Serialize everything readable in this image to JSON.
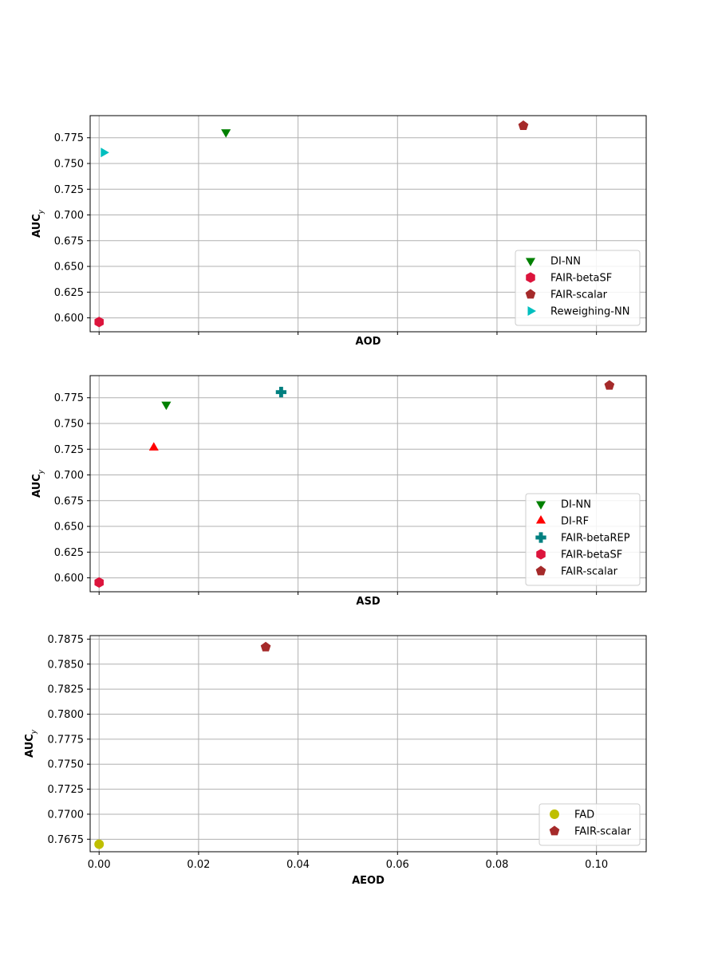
{
  "chart_data": [
    {
      "type": "scatter",
      "xlabel": "AOD",
      "ylabel": "AUC",
      "ylabel_subscript": "y",
      "xlim": [
        -0.0018,
        0.11
      ],
      "ylim": [
        0.5865,
        0.7965
      ],
      "x_ticks": [
        0.0,
        0.02,
        0.04,
        0.06,
        0.08,
        0.1
      ],
      "x_tick_labels_visible": false,
      "y_ticks": [
        0.6,
        0.625,
        0.65,
        0.675,
        0.7,
        0.725,
        0.75,
        0.775
      ],
      "y_tick_labels": [
        "0.600",
        "0.625",
        "0.650",
        "0.675",
        "0.700",
        "0.725",
        "0.750",
        "0.775"
      ],
      "grid": true,
      "legend_position": "lower-right",
      "series": [
        {
          "name": "DI-NN",
          "marker": "triangle-down",
          "color": "#008000",
          "points": [
            {
              "x": 0.0255,
              "y": 0.7805
            }
          ]
        },
        {
          "name": "FAIR-betaSF",
          "marker": "hexagon",
          "color": "#dc143c",
          "points": [
            {
              "x": 0.0,
              "y": 0.596
            }
          ]
        },
        {
          "name": "FAIR-scalar",
          "marker": "pentagon",
          "color": "#a52a2a",
          "points": [
            {
              "x": 0.0853,
              "y": 0.7867
            }
          ]
        },
        {
          "name": "Reweighing-NN",
          "marker": "triangle-right",
          "color": "#00bfbf",
          "points": [
            {
              "x": 0.0009,
              "y": 0.7607
            }
          ]
        }
      ]
    },
    {
      "type": "scatter",
      "xlabel": "ASD",
      "ylabel": "AUC",
      "ylabel_subscript": "y",
      "xlim": [
        -0.0018,
        0.11
      ],
      "ylim": [
        0.5865,
        0.7965
      ],
      "x_ticks": [
        0.0,
        0.02,
        0.04,
        0.06,
        0.08,
        0.1
      ],
      "x_tick_labels_visible": false,
      "y_ticks": [
        0.6,
        0.625,
        0.65,
        0.675,
        0.7,
        0.725,
        0.75,
        0.775
      ],
      "y_tick_labels": [
        "0.600",
        "0.625",
        "0.650",
        "0.675",
        "0.700",
        "0.725",
        "0.750",
        "0.775"
      ],
      "grid": true,
      "legend_position": "lower-right",
      "series": [
        {
          "name": "DI-NN",
          "marker": "triangle-down",
          "color": "#008000",
          "points": [
            {
              "x": 0.0135,
              "y": 0.7685
            }
          ]
        },
        {
          "name": "DI-RF",
          "marker": "triangle-up",
          "color": "#ff0000",
          "points": [
            {
              "x": 0.011,
              "y": 0.7265
            }
          ]
        },
        {
          "name": "FAIR-betaREP",
          "marker": "plus-filled",
          "color": "#008080",
          "points": [
            {
              "x": 0.0366,
              "y": 0.7805
            }
          ]
        },
        {
          "name": "FAIR-betaSF",
          "marker": "hexagon",
          "color": "#dc143c",
          "points": [
            {
              "x": 0.0,
              "y": 0.5955
            }
          ]
        },
        {
          "name": "FAIR-scalar",
          "marker": "pentagon",
          "color": "#a52a2a",
          "points": [
            {
              "x": 0.1026,
              "y": 0.787
            }
          ]
        }
      ]
    },
    {
      "type": "scatter",
      "xlabel": "AEOD",
      "ylabel": "AUC",
      "ylabel_subscript": "y",
      "xlim": [
        -0.0018,
        0.11
      ],
      "ylim": [
        0.76625,
        0.78785
      ],
      "x_ticks": [
        0.0,
        0.02,
        0.04,
        0.06,
        0.08,
        0.1
      ],
      "x_tick_labels": [
        "0.00",
        "0.02",
        "0.04",
        "0.06",
        "0.08",
        "0.10"
      ],
      "x_tick_labels_visible": true,
      "y_ticks": [
        0.7675,
        0.77,
        0.7725,
        0.775,
        0.7775,
        0.78,
        0.7825,
        0.785,
        0.7875
      ],
      "y_tick_labels": [
        "0.7675",
        "0.7700",
        "0.7725",
        "0.7750",
        "0.7775",
        "0.7800",
        "0.7825",
        "0.7850",
        "0.7875"
      ],
      "grid": true,
      "legend_position": "lower-right",
      "series": [
        {
          "name": "FAD",
          "marker": "circle",
          "color": "#bfbf00",
          "points": [
            {
              "x": 0.0,
              "y": 0.767
            }
          ]
        },
        {
          "name": "FAIR-scalar",
          "marker": "pentagon",
          "color": "#a52a2a",
          "points": [
            {
              "x": 0.0335,
              "y": 0.7867
            }
          ]
        }
      ]
    }
  ]
}
